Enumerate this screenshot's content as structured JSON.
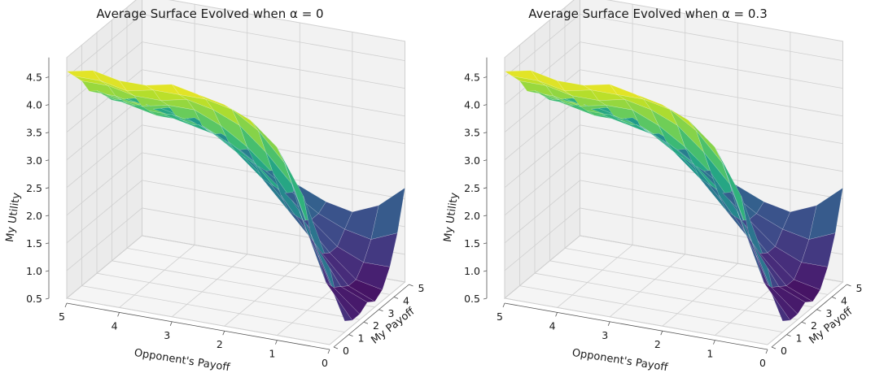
{
  "chart_data": [
    {
      "type": "surface",
      "title": "Average Surface Evolved when α = 0",
      "xlabel": "My Payoff",
      "ylabel": "Opponent's Payoff",
      "zlabel": "My Utility",
      "xlim": [
        0,
        5
      ],
      "ylim": [
        0,
        5
      ],
      "zlim": [
        0.5,
        4.7
      ],
      "x_ticks": [
        "0",
        "1",
        "2",
        "3",
        "4",
        "5"
      ],
      "y_ticks": [
        "5",
        "4",
        "3",
        "2",
        "1",
        "0"
      ],
      "z_ticks": [
        "0.5",
        "1.0",
        "1.5",
        "2.0",
        "2.5",
        "3.0",
        "3.5",
        "4.0",
        "4.5"
      ],
      "colormap": "viridis",
      "grid": true,
      "grid_x": [
        0,
        0.5,
        1,
        1.5,
        2,
        2.5,
        3,
        3.5,
        4,
        4.5,
        5
      ],
      "grid_y": [
        0,
        0.5,
        1,
        1.5,
        2,
        2.5,
        3,
        3.5,
        4,
        4.5,
        5
      ],
      "z": [
        [
          1.9,
          3.1,
          3.9,
          4.3,
          4.5,
          4.6,
          4.7,
          4.6,
          4.6,
          4.7,
          4.6
        ],
        [
          1.2,
          2.3,
          3.5,
          4.0,
          4.3,
          4.4,
          4.4,
          4.4,
          4.3,
          4.4,
          4.4
        ],
        [
          0.7,
          1.8,
          3.0,
          3.5,
          3.9,
          4.1,
          4.2,
          4.1,
          4.1,
          4.2,
          4.2
        ],
        [
          0.6,
          1.2,
          2.4,
          3.0,
          3.4,
          3.7,
          3.9,
          3.9,
          3.8,
          3.9,
          3.9
        ],
        [
          0.6,
          1.0,
          1.9,
          2.5,
          3.0,
          3.3,
          3.5,
          3.6,
          3.6,
          3.7,
          3.8
        ],
        [
          0.7,
          0.9,
          1.6,
          2.1,
          2.6,
          3.0,
          3.3,
          3.4,
          3.4,
          3.5,
          3.6
        ],
        [
          0.6,
          0.8,
          1.3,
          1.9,
          2.4,
          2.8,
          3.1,
          3.2,
          3.3,
          3.4,
          3.4
        ],
        [
          0.7,
          0.8,
          1.2,
          1.7,
          2.2,
          2.6,
          2.9,
          3.1,
          3.2,
          3.3,
          3.3
        ],
        [
          1.0,
          1.0,
          1.2,
          1.6,
          2.0,
          2.4,
          2.7,
          2.9,
          3.0,
          3.1,
          3.2
        ],
        [
          1.5,
          1.3,
          1.4,
          1.6,
          1.9,
          2.2,
          2.5,
          2.7,
          2.9,
          3.0,
          3.1
        ],
        [
          2.2,
          1.8,
          1.6,
          1.7,
          1.9,
          2.1,
          2.4,
          2.6,
          2.8,
          2.9,
          3.0
        ]
      ]
    },
    {
      "type": "surface",
      "title": "Average Surface Evolved when α = 0.3",
      "xlabel": "My Payoff",
      "ylabel": "Opponent's Payoff",
      "zlabel": "My Utility",
      "xlim": [
        0,
        5
      ],
      "ylim": [
        0,
        5
      ],
      "zlim": [
        0.5,
        4.7
      ],
      "x_ticks": [
        "0",
        "1",
        "2",
        "3",
        "4",
        "5"
      ],
      "y_ticks": [
        "5",
        "4",
        "3",
        "2",
        "1",
        "0"
      ],
      "z_ticks": [
        "0.5",
        "1.0",
        "1.5",
        "2.0",
        "2.5",
        "3.0",
        "3.5",
        "4.0",
        "4.5"
      ],
      "colormap": "viridis",
      "grid": true,
      "grid_x": [
        0,
        0.5,
        1,
        1.5,
        2,
        2.5,
        3,
        3.5,
        4,
        4.5,
        5
      ],
      "grid_y": [
        0,
        0.5,
        1,
        1.5,
        2,
        2.5,
        3,
        3.5,
        4,
        4.5,
        5
      ],
      "z": [
        [
          1.9,
          3.1,
          3.9,
          4.3,
          4.5,
          4.6,
          4.7,
          4.6,
          4.6,
          4.7,
          4.6
        ],
        [
          1.2,
          2.3,
          3.5,
          4.0,
          4.3,
          4.4,
          4.4,
          4.4,
          4.3,
          4.4,
          4.4
        ],
        [
          0.7,
          1.8,
          3.0,
          3.5,
          3.9,
          4.1,
          4.2,
          4.1,
          4.1,
          4.2,
          4.2
        ],
        [
          0.6,
          1.2,
          2.4,
          3.0,
          3.4,
          3.7,
          3.9,
          3.9,
          3.8,
          3.9,
          3.9
        ],
        [
          0.6,
          1.0,
          1.9,
          2.5,
          3.0,
          3.3,
          3.5,
          3.6,
          3.6,
          3.7,
          3.8
        ],
        [
          0.7,
          0.9,
          1.6,
          2.1,
          2.6,
          3.0,
          3.3,
          3.4,
          3.4,
          3.5,
          3.6
        ],
        [
          0.6,
          0.8,
          1.3,
          1.9,
          2.4,
          2.8,
          3.1,
          3.2,
          3.3,
          3.4,
          3.4
        ],
        [
          0.7,
          0.8,
          1.2,
          1.7,
          2.2,
          2.6,
          2.9,
          3.1,
          3.2,
          3.3,
          3.3
        ],
        [
          1.0,
          1.0,
          1.2,
          1.6,
          2.0,
          2.4,
          2.7,
          2.9,
          3.0,
          3.1,
          3.2
        ],
        [
          1.5,
          1.3,
          1.4,
          1.6,
          1.9,
          2.2,
          2.5,
          2.7,
          2.9,
          3.0,
          3.1
        ],
        [
          2.2,
          1.8,
          1.6,
          1.7,
          1.9,
          2.1,
          2.4,
          2.6,
          2.8,
          2.9,
          3.0
        ]
      ]
    }
  ]
}
